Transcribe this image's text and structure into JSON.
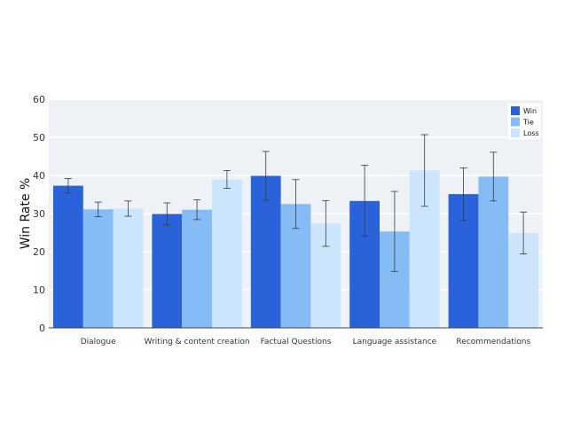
{
  "chart_data": {
    "type": "bar",
    "title": "",
    "xlabel": "",
    "ylabel": "Win Rate %",
    "ylim": [
      0,
      60
    ],
    "yticks": [
      0,
      10,
      20,
      30,
      40,
      50,
      60
    ],
    "grid": true,
    "legend_position": "top-right",
    "categories": [
      "Dialogue",
      "Writing & content creation",
      "Factual Questions",
      "Language assistance",
      "Recommendations"
    ],
    "series": [
      {
        "name": "Win",
        "color": "#2962d9",
        "values": [
          37.3,
          29.9,
          39.9,
          33.3,
          35.1
        ],
        "err_low": [
          35.4,
          27.0,
          33.5,
          24.0,
          28.2
        ],
        "err_high": [
          39.2,
          32.8,
          46.3,
          42.7,
          42.0
        ]
      },
      {
        "name": "Tie",
        "color": "#85bcf5",
        "values": [
          31.1,
          31.0,
          32.5,
          25.3,
          39.7
        ],
        "err_low": [
          29.2,
          28.4,
          26.1,
          14.8,
          33.3
        ],
        "err_high": [
          33.0,
          33.6,
          38.9,
          35.8,
          46.1
        ]
      },
      {
        "name": "Loss",
        "color": "#cce5fc",
        "values": [
          31.3,
          38.9,
          27.4,
          41.3,
          24.9
        ],
        "err_low": [
          29.3,
          36.6,
          21.4,
          31.9,
          19.4
        ],
        "err_high": [
          33.3,
          41.3,
          33.4,
          50.7,
          30.4
        ]
      }
    ]
  }
}
